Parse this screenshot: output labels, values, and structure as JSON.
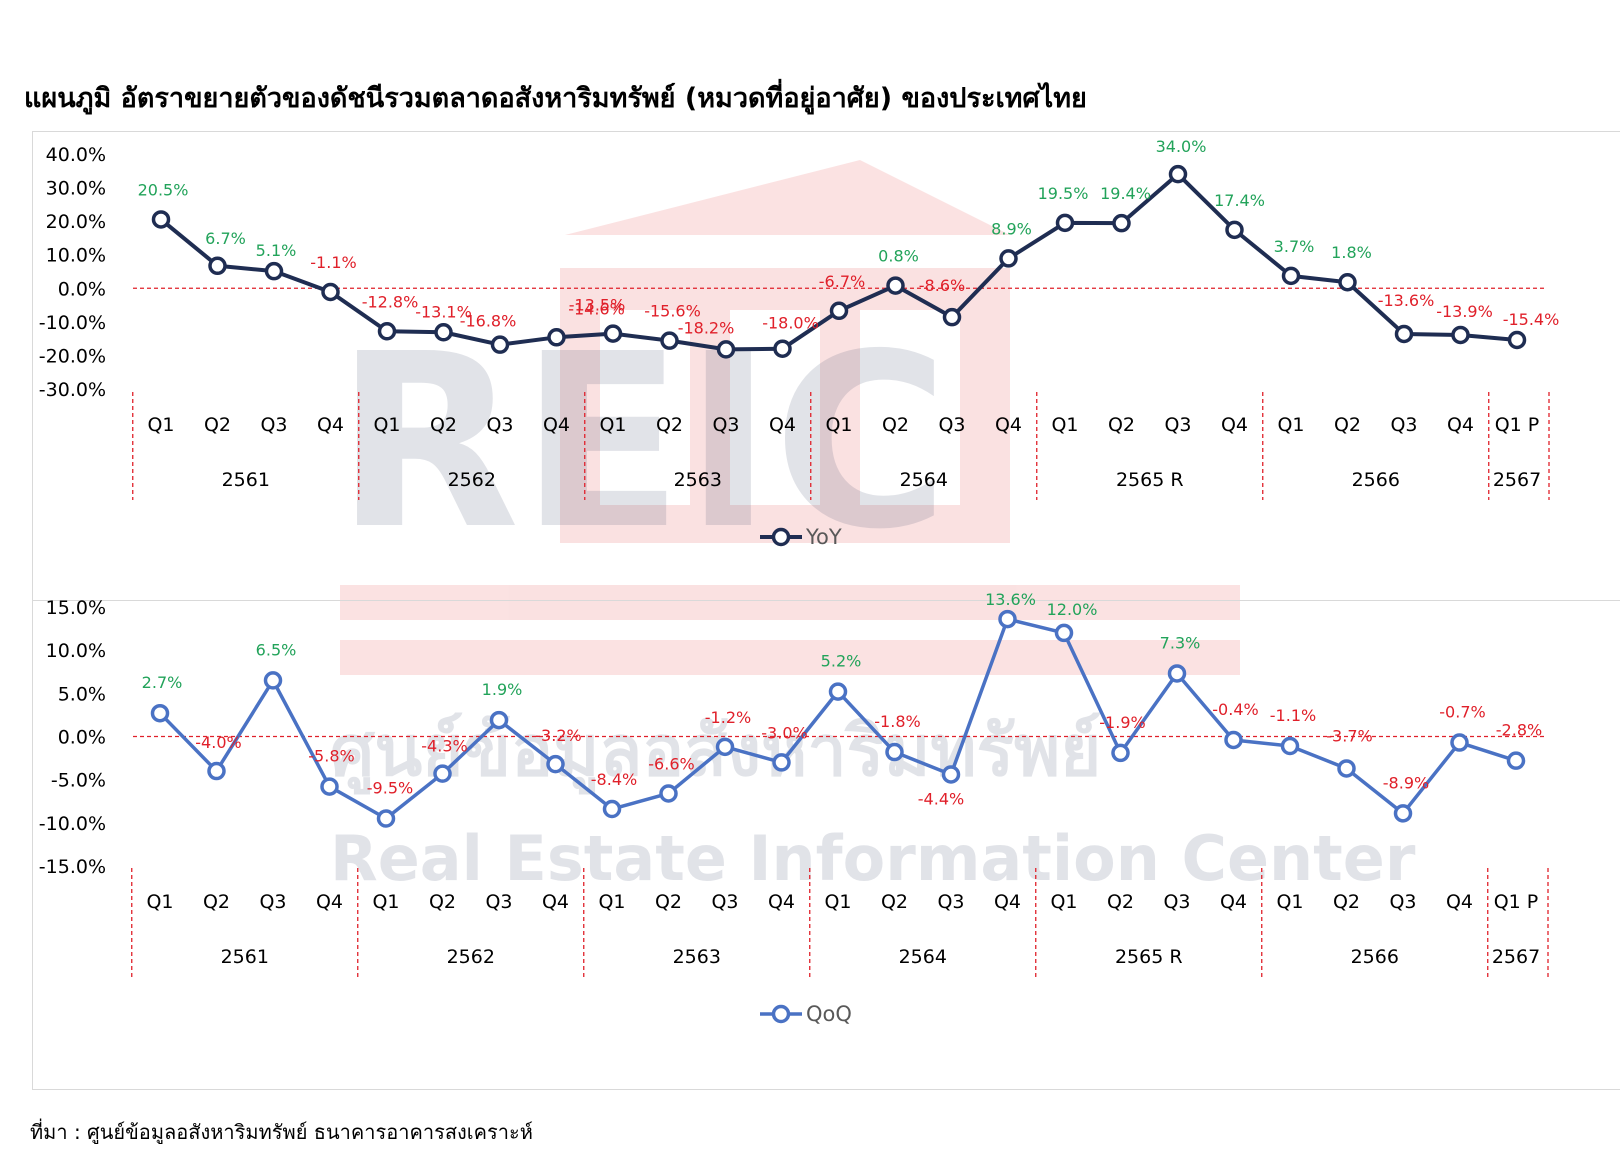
{
  "title": "แผนภูมิ อัตราขยายตัวของดัชนีรวมตลาดอสังหาริมทรัพย์ (หมวดที่อยู่อาศัย) ของประเทศไทย",
  "source": "ที่มา : ศูนย์ข้อมูลอสังหาริมทรัพย์ ธนาคารอาคารสงเคราะห์",
  "watermark": {
    "logo": "REIC",
    "line1": "ศูนย์ข้อมูลอสังหาริมทรัพย์",
    "line2": "Real Estate Information Center"
  },
  "colors": {
    "positive": "#22a35a",
    "negative": "#e0202a",
    "yoy_line": "#1f2d52",
    "qoq_line": "#4a72c4",
    "zero_line": "#e0202a"
  },
  "chart_data": [
    {
      "type": "line",
      "categories": [
        "Q1",
        "Q2",
        "Q3",
        "Q4",
        "Q1",
        "Q2",
        "Q3",
        "Q4",
        "Q1",
        "Q2",
        "Q3",
        "Q4",
        "Q1",
        "Q2",
        "Q3",
        "Q4",
        "Q1",
        "Q2",
        "Q3",
        "Q4",
        "Q1",
        "Q2",
        "Q3",
        "Q4",
        "Q1 P"
      ],
      "groups": [
        {
          "label": "2561",
          "count": 4
        },
        {
          "label": "2562",
          "count": 4
        },
        {
          "label": "2563",
          "count": 4
        },
        {
          "label": "2564",
          "count": 4
        },
        {
          "label": "2565 R",
          "count": 4
        },
        {
          "label": "2566",
          "count": 4
        },
        {
          "label": "2567",
          "count": 1
        }
      ],
      "series": [
        {
          "name": "YoY",
          "values": [
            20.5,
            6.7,
            5.1,
            -1.1,
            -12.8,
            -13.1,
            -16.8,
            -14.6,
            -13.5,
            -15.6,
            -18.2,
            -18.0,
            -6.7,
            0.8,
            -8.6,
            8.9,
            19.5,
            19.4,
            34.0,
            17.4,
            3.7,
            1.8,
            -13.6,
            -13.9,
            -15.4
          ],
          "labels": [
            "20.5%",
            "6.7%",
            "5.1%",
            "-1.1%",
            "-12.8%",
            "-13.1%",
            "-16.8%",
            "-14.6%",
            "-13.5%",
            "-15.6%",
            "-18.2%",
            "-18.0%",
            "-6.7%",
            "0.8%",
            "-8.6%",
            "8.9%",
            "19.5%",
            "19.4%",
            "34.0%",
            "17.4%",
            "3.7%",
            "1.8%",
            "-13.6%",
            "-13.9%",
            "-15.4%"
          ]
        }
      ],
      "ylim": [
        -30,
        40
      ],
      "yticks": [
        "40.0%",
        "30.0%",
        "20.0%",
        "10.0%",
        "0.0%",
        "-10.0%",
        "-20.0%",
        "-30.0%"
      ],
      "legend": "bottom"
    },
    {
      "type": "line",
      "categories": [
        "Q1",
        "Q2",
        "Q3",
        "Q4",
        "Q1",
        "Q2",
        "Q3",
        "Q4",
        "Q1",
        "Q2",
        "Q3",
        "Q4",
        "Q1",
        "Q2",
        "Q3",
        "Q4",
        "Q1",
        "Q2",
        "Q3",
        "Q4",
        "Q1",
        "Q2",
        "Q3",
        "Q4",
        "Q1 P"
      ],
      "groups": [
        {
          "label": "2561",
          "count": 4
        },
        {
          "label": "2562",
          "count": 4
        },
        {
          "label": "2563",
          "count": 4
        },
        {
          "label": "2564",
          "count": 4
        },
        {
          "label": "2565 R",
          "count": 4
        },
        {
          "label": "2566",
          "count": 4
        },
        {
          "label": "2567",
          "count": 1
        }
      ],
      "series": [
        {
          "name": "QoQ",
          "values": [
            2.7,
            -4.0,
            6.5,
            -5.8,
            -9.5,
            -4.3,
            1.9,
            -3.2,
            -8.4,
            -6.6,
            -1.2,
            -3.0,
            5.2,
            -1.8,
            -4.4,
            13.6,
            12.0,
            -1.9,
            7.3,
            -0.4,
            -1.1,
            -3.7,
            -8.9,
            -0.7,
            -2.8
          ],
          "labels": [
            "2.7%",
            "-4.0%",
            "6.5%",
            "-5.8%",
            "-9.5%",
            "-4.3%",
            "1.9%",
            "-3.2%",
            "-8.4%",
            "-6.6%",
            "-1.2%",
            "-3.0%",
            "5.2%",
            "-1.8%",
            "-4.4%",
            "13.6%",
            "12.0%",
            "-1.9%",
            "7.3%",
            "-0.4%",
            "-1.1%",
            "-3.7%",
            "-8.9%",
            "-0.7%",
            "-2.8%"
          ]
        }
      ],
      "ylim": [
        -15,
        15
      ],
      "yticks": [
        "15.0%",
        "10.0%",
        "5.0%",
        "0.0%",
        "-5.0%",
        "-10.0%",
        "-15.0%"
      ],
      "legend": "bottom"
    }
  ]
}
